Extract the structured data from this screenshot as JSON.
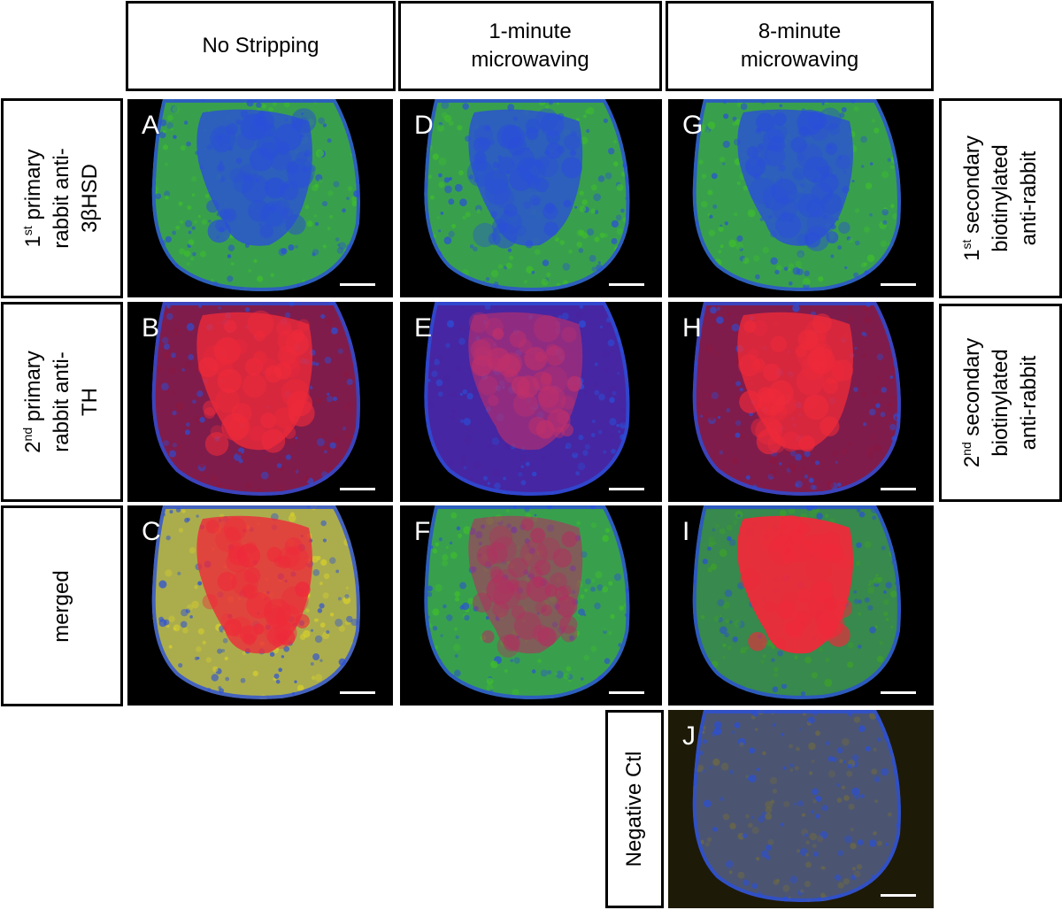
{
  "columns": {
    "col1": "No Stripping",
    "col2_line1": "1-minute",
    "col2_line2": "microwaving",
    "col3_line1": "8-minute",
    "col3_line2": "microwaving"
  },
  "rows": {
    "row1": {
      "sup": "st",
      "pre": "1",
      "line1": "primary",
      "line2": "rabbit anti-",
      "line3": "3βHSD"
    },
    "row2": {
      "sup": "nd",
      "pre": "2",
      "line1": "primary",
      "line2": "rabbit anti-",
      "line3": "TH"
    },
    "row3": {
      "label": "merged"
    }
  },
  "right_labels": {
    "r1": {
      "pre": "1",
      "sup": "st",
      "line1": "secondary",
      "line2": "biotinylated",
      "line3": "anti-rabbit"
    },
    "r2": {
      "pre": "2",
      "sup": "nd",
      "line1": "secondary",
      "line2": "biotinylated",
      "line3": "anti-rabbit"
    }
  },
  "negative_label": "Negative Ctl",
  "panels": [
    "A",
    "B",
    "C",
    "D",
    "E",
    "F",
    "G",
    "H",
    "I",
    "J"
  ],
  "colors": {
    "nuclear_stain": "#2a4fd8",
    "green_channel": "#3fbf2a",
    "red_channel": "#ee2a3a",
    "merged_yellow": "#d8d02a",
    "negative_tint": "#6f6a40"
  }
}
